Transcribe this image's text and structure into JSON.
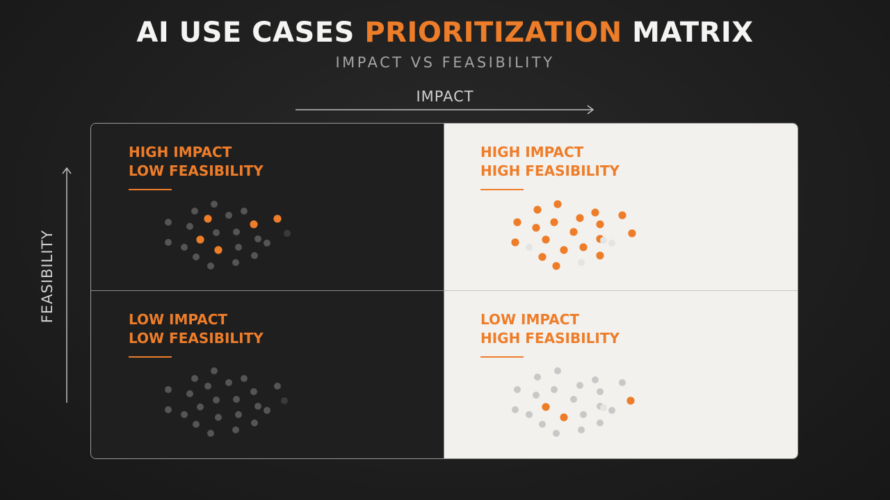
{
  "header": {
    "title_part1": "AI USE CASES",
    "title_accent": "PRIORITIZATION",
    "title_part2": "MATRIX",
    "subtitle": "IMPACT VS FEASIBILITY"
  },
  "axes": {
    "x_label": "IMPACT",
    "y_label": "FEASIBILITY"
  },
  "colors": {
    "accent": "#ee7d2a",
    "dark_panel": "#1f1f1f",
    "light_panel": "#f2f1ee",
    "dot_dark": "#555555",
    "dot_light": "#c8c8c8"
  },
  "quadrants": {
    "top_left": {
      "line1": "HIGH IMPACT",
      "line2": "LOW FEASIBILITY"
    },
    "top_right": {
      "line1": "HIGH IMPACT",
      "line2": "HIGH FEASIBILITY"
    },
    "bottom_left": {
      "line1": "LOW IMPACT",
      "line2": "LOW FEASIBILITY"
    },
    "bottom_right": {
      "line1": "LOW IMPACT",
      "line2": "HIGH FEASIBILITY"
    }
  }
}
